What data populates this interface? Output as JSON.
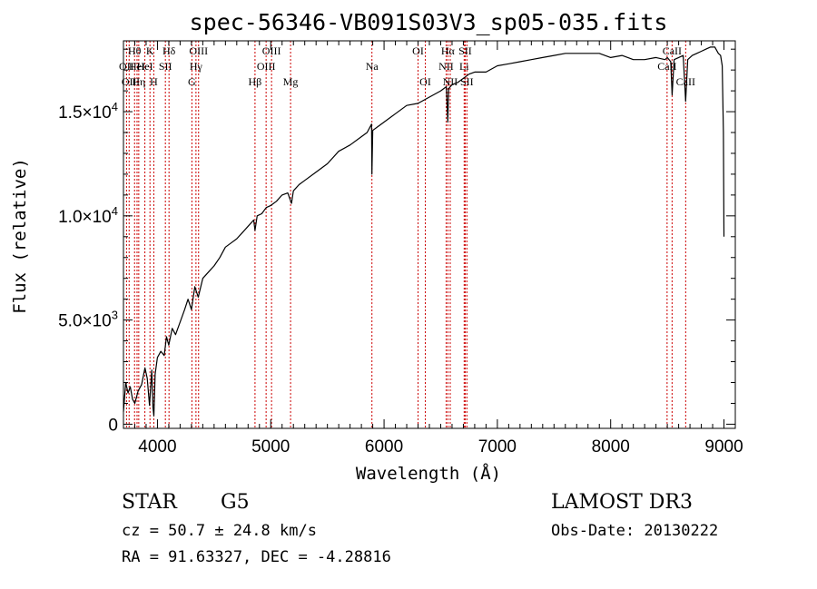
{
  "chart_data": {
    "type": "line",
    "title": "spec-56346-VB091S03V3_sp05-035.fits",
    "xlabel": "Wavelength (Å)",
    "ylabel": "Flux (relative)",
    "xlim": [
      3700,
      9100
    ],
    "ylim": [
      -200,
      18400
    ],
    "x_ticks": [
      {
        "value": 4000,
        "label": "4000"
      },
      {
        "value": 5000,
        "label": "5000"
      },
      {
        "value": 6000,
        "label": "6000"
      },
      {
        "value": 7000,
        "label": "7000"
      },
      {
        "value": 8000,
        "label": "8000"
      },
      {
        "value": 9000,
        "label": "9000"
      }
    ],
    "y_ticks": [
      {
        "value": 0,
        "label": "0",
        "mantissa": "",
        "exponent": ""
      },
      {
        "value": 5000,
        "label": "5.0×10³",
        "mantissa": "5.0×10",
        "exponent": "3"
      },
      {
        "value": 10000,
        "label": "1.0×10⁴",
        "mantissa": "1.0×10",
        "exponent": "4"
      },
      {
        "value": 15000,
        "label": "1.5×10⁴",
        "mantissa": "1.5×10",
        "exponent": "4"
      }
    ],
    "series": [
      {
        "name": "spectrum",
        "x": [
          3700,
          3720,
          3740,
          3760,
          3780,
          3800,
          3830,
          3860,
          3890,
          3910,
          3930,
          3950,
          3960,
          3968,
          3980,
          4000,
          4030,
          4060,
          4080,
          4100,
          4130,
          4160,
          4200,
          4240,
          4270,
          4300,
          4330,
          4360,
          4400,
          4450,
          4500,
          4550,
          4600,
          4650,
          4700,
          4750,
          4800,
          4850,
          4861,
          4880,
          4920,
          4960,
          5000,
          5050,
          5100,
          5150,
          5183,
          5200,
          5250,
          5300,
          5400,
          5500,
          5600,
          5700,
          5800,
          5850,
          5890,
          5893,
          5900,
          5950,
          6000,
          6100,
          6200,
          6300,
          6400,
          6500,
          6550,
          6563,
          6570,
          6600,
          6650,
          6700,
          6750,
          6800,
          6900,
          7000,
          7100,
          7200,
          7300,
          7400,
          7500,
          7600,
          7700,
          7800,
          7900,
          8000,
          8100,
          8200,
          8300,
          8400,
          8480,
          8500,
          8530,
          8542,
          8560,
          8600,
          8640,
          8662,
          8680,
          8720,
          8760,
          8800,
          8840,
          8880,
          8920,
          8950,
          8970,
          8985,
          8995,
          9000
        ],
        "y": [
          600,
          2000,
          1500,
          1800,
          1200,
          1000,
          1600,
          1900,
          2700,
          2200,
          900,
          2600,
          800,
          400,
          2400,
          3200,
          3500,
          3300,
          4200,
          3800,
          4600,
          4300,
          4900,
          5500,
          6000,
          5500,
          6600,
          6100,
          7000,
          7300,
          7600,
          8000,
          8500,
          8700,
          8900,
          9200,
          9500,
          9800,
          9300,
          10000,
          10100,
          10400,
          10500,
          10700,
          11000,
          11100,
          10600,
          11200,
          11500,
          11700,
          12100,
          12500,
          13100,
          13400,
          13800,
          14000,
          14400,
          12000,
          14100,
          14300,
          14500,
          14900,
          15300,
          15400,
          15700,
          16000,
          16200,
          14500,
          16100,
          16300,
          16400,
          16600,
          16800,
          16900,
          16900,
          17200,
          17300,
          17400,
          17500,
          17600,
          17700,
          17800,
          17800,
          17800,
          17800,
          17600,
          17700,
          17500,
          17500,
          17600,
          17500,
          17600,
          17400,
          15800,
          17500,
          17600,
          17700,
          15500,
          17500,
          17700,
          17800,
          17900,
          18000,
          18100,
          18100,
          17800,
          17700,
          17200,
          14000,
          9000
        ]
      }
    ],
    "spectral_lines": [
      {
        "wavelength": 3727,
        "label": "OII",
        "row": 1
      },
      {
        "wavelength": 3750,
        "label": "OII",
        "row": 2
      },
      {
        "wavelength": 3798,
        "label": "Hθ",
        "row": 0
      },
      {
        "wavelength": 3820,
        "label": "HeI",
        "row": 1
      },
      {
        "wavelength": 3835,
        "label": "Hη",
        "row": 2
      },
      {
        "wavelength": 3889,
        "label": "HeI",
        "row": 1
      },
      {
        "wavelength": 3934,
        "label": "K",
        "row": 0
      },
      {
        "wavelength": 3968,
        "label": "H",
        "row": 2
      },
      {
        "wavelength": 4070,
        "label": "SII",
        "row": 1
      },
      {
        "wavelength": 4102,
        "label": "Hδ",
        "row": 0
      },
      {
        "wavelength": 4304,
        "label": "G",
        "row": 2
      },
      {
        "wavelength": 4340,
        "label": "Hγ",
        "row": 1
      },
      {
        "wavelength": 4363,
        "label": "OIII",
        "row": 0
      },
      {
        "wavelength": 4861,
        "label": "Hβ",
        "row": 2
      },
      {
        "wavelength": 4959,
        "label": "OIII",
        "row": 1
      },
      {
        "wavelength": 5007,
        "label": "OIII",
        "row": 0
      },
      {
        "wavelength": 5175,
        "label": "Mg",
        "row": 2
      },
      {
        "wavelength": 5893,
        "label": "Na",
        "row": 1
      },
      {
        "wavelength": 6300,
        "label": "OI",
        "row": 0
      },
      {
        "wavelength": 6364,
        "label": "OI",
        "row": 2
      },
      {
        "wavelength": 6548,
        "label": "NII",
        "row": 1
      },
      {
        "wavelength": 6563,
        "label": "Hα",
        "row": 0
      },
      {
        "wavelength": 6584,
        "label": "NII",
        "row": 2
      },
      {
        "wavelength": 6707,
        "label": "Li",
        "row": 1
      },
      {
        "wavelength": 6716,
        "label": "SII",
        "row": 0
      },
      {
        "wavelength": 6731,
        "label": "SII",
        "row": 2
      },
      {
        "wavelength": 8498,
        "label": "CaII",
        "row": 1
      },
      {
        "wavelength": 8542,
        "label": "CaII",
        "row": 0
      },
      {
        "wavelength": 8662,
        "label": "CaII",
        "row": 2
      }
    ],
    "line_color": "#cc0000",
    "spectrum_color": "#000000"
  },
  "info": {
    "class": "STAR",
    "subclass": "G5",
    "survey": "LAMOST DR3",
    "cz": "cz = 50.7 ± 24.8 km/s",
    "obs_date": "Obs-Date: 20130222",
    "coords": "RA =  91.63327, DEC =  -4.28816"
  }
}
